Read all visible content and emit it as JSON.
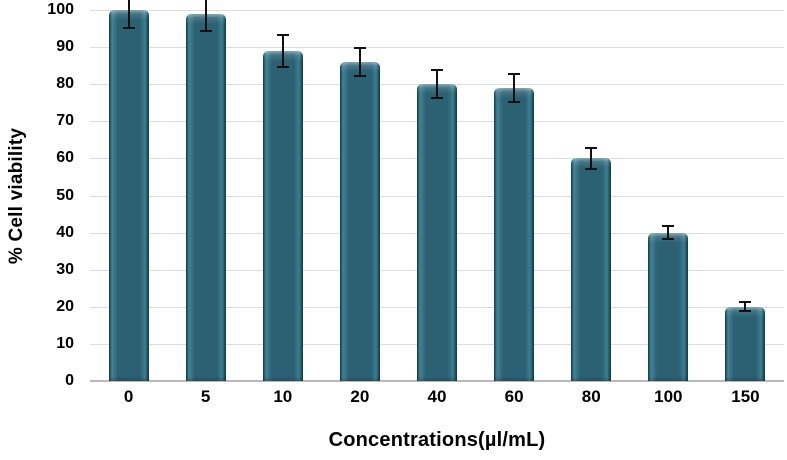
{
  "chart_data": {
    "type": "bar",
    "title": "",
    "xlabel": "Concentrations(µl/mL)",
    "ylabel": "% Cell viability",
    "categories": [
      "0",
      "5",
      "10",
      "20",
      "40",
      "60",
      "80",
      "100",
      "150"
    ],
    "values": [
      100,
      99,
      89,
      86,
      80,
      79,
      60,
      40,
      20
    ],
    "errors": [
      5,
      5,
      4.5,
      4,
      4,
      4,
      3,
      2,
      1.5
    ],
    "ylim": [
      0,
      100
    ],
    "yticks": [
      0,
      10,
      20,
      30,
      40,
      50,
      60,
      70,
      80,
      90,
      100
    ],
    "grid": true,
    "legend": "none",
    "colors": {
      "bar": "#2c6173",
      "bar_highlight": "#448397",
      "bar_shadow": "#123c49",
      "gridline": "#dcdcdc",
      "axis_line": "#b8b8b8",
      "error_bar": "#111111",
      "text": "#000000"
    }
  }
}
